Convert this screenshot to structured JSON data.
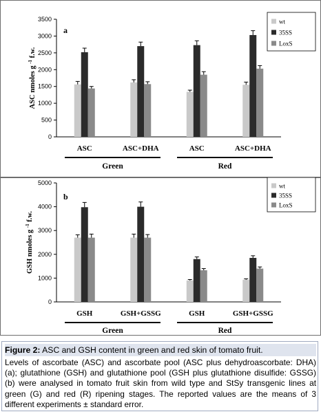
{
  "chart_data": [
    {
      "type": "bar",
      "panel_label": "a",
      "ylabel": "ASC nmoles g -1 f.w.",
      "ylim": [
        0,
        3500
      ],
      "yticks": [
        0,
        500,
        1000,
        1500,
        2000,
        2500,
        3000,
        3500
      ],
      "categories": [
        "ASC",
        "ASC+DHA",
        "ASC",
        "ASC+DHA"
      ],
      "groups": [
        {
          "label": "Green",
          "span": [
            0,
            1
          ]
        },
        {
          "label": "Red",
          "span": [
            2,
            3
          ]
        }
      ],
      "legend_position": "top-right",
      "series": [
        {
          "name": "wt",
          "color": "#c9c9c9",
          "values": [
            1560,
            1620,
            1340,
            1550
          ],
          "errors": [
            90,
            80,
            50,
            80
          ]
        },
        {
          "name": "35SS",
          "color": "#2b2b2b",
          "values": [
            2520,
            2700,
            2730,
            3030
          ],
          "errors": [
            120,
            120,
            130,
            130
          ]
        },
        {
          "name": "LoxS",
          "color": "#8a8a8a",
          "values": [
            1440,
            1570,
            1850,
            2030
          ],
          "errors": [
            60,
            70,
            90,
            90
          ]
        }
      ]
    },
    {
      "type": "bar",
      "panel_label": "b",
      "ylabel": "GSH nmoles g -1 f.w.",
      "ylim": [
        0,
        5000
      ],
      "yticks": [
        0,
        1000,
        2000,
        3000,
        4000,
        5000
      ],
      "categories": [
        "GSH",
        "GSH+GSSG",
        "GSH",
        "GSH+GSSG"
      ],
      "groups": [
        {
          "label": "Green",
          "span": [
            0,
            1
          ]
        },
        {
          "label": "Red",
          "span": [
            2,
            3
          ]
        }
      ],
      "legend_position": "top-right",
      "series": [
        {
          "name": "wt",
          "color": "#c9c9c9",
          "values": [
            2700,
            2700,
            900,
            930
          ],
          "errors": [
            120,
            150,
            40,
            40
          ]
        },
        {
          "name": "35SS",
          "color": "#2b2b2b",
          "values": [
            3980,
            4000,
            1800,
            1850
          ],
          "errors": [
            200,
            200,
            90,
            90
          ]
        },
        {
          "name": "LoxS",
          "color": "#8a8a8a",
          "values": [
            2700,
            2700,
            1330,
            1400
          ],
          "errors": [
            150,
            130,
            70,
            70
          ]
        }
      ]
    }
  ],
  "caption": {
    "title_prefix": "Figure 2:",
    "title_text": " ASC and GSH content in green and red skin of tomato fruit.",
    "body": "Levels of ascorbate (ASC) and ascorbate pool (ASC plus dehydroascorbate: DHA) (a); glutathione (GSH) and glutathione pool (GSH plus glutathione disulfide: GSSG) (b) were analysed in tomato fruit skin from wild type and StSy transgenic lines at green (G) and red (R) ripening stages. The reported values are the means of 3 different experiments ± standard error."
  }
}
